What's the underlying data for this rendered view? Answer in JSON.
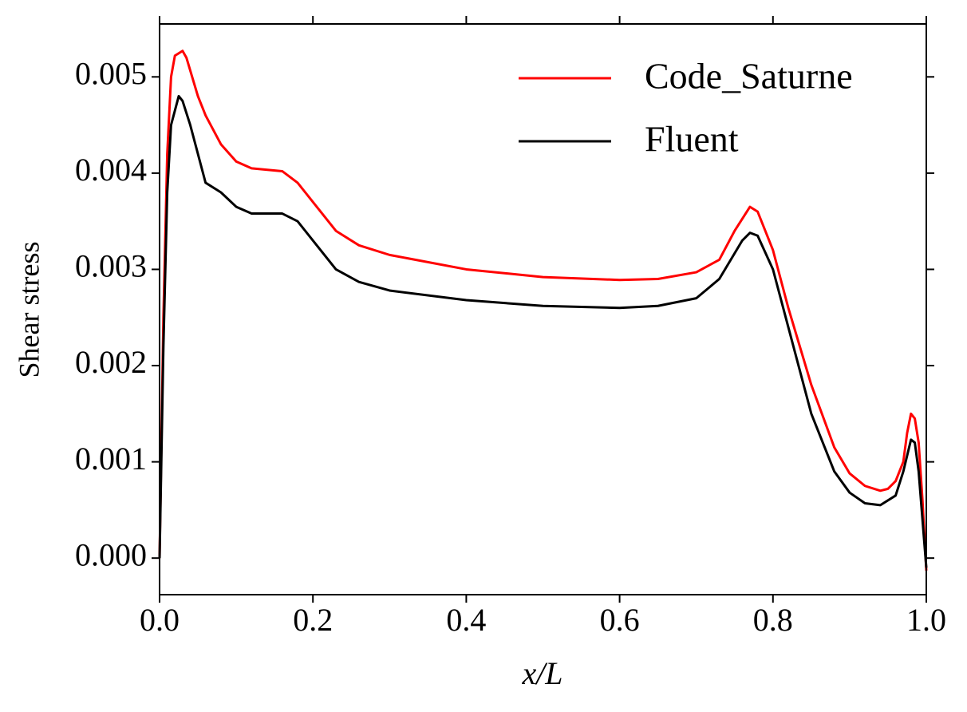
{
  "chart_data": {
    "type": "line",
    "xlabel": "x/L",
    "ylabel": "Shear stress",
    "xlim": [
      0,
      1
    ],
    "ylim": [
      -0.00038,
      0.00555
    ],
    "xticks": [
      {
        "value": 0,
        "label": "0.0"
      },
      {
        "value": 0.2,
        "label": "0.2"
      },
      {
        "value": 0.4,
        "label": "0.4"
      },
      {
        "value": 0.6,
        "label": "0.6"
      },
      {
        "value": 0.8,
        "label": "0.8"
      },
      {
        "value": 1,
        "label": "1.0"
      }
    ],
    "yticks": [
      {
        "value": 0,
        "label": "0.000"
      },
      {
        "value": 0.001,
        "label": "0.001"
      },
      {
        "value": 0.002,
        "label": "0.002"
      },
      {
        "value": 0.003,
        "label": "0.003"
      },
      {
        "value": 0.004,
        "label": "0.004"
      },
      {
        "value": 0.005,
        "label": "0.005"
      }
    ],
    "legend": "upper right",
    "grid": false,
    "series": [
      {
        "name": "Code_Saturne",
        "color": "#ff0000",
        "x": [
          0,
          0.005,
          0.01,
          0.015,
          0.02,
          0.03,
          0.035,
          0.05,
          0.06,
          0.08,
          0.1,
          0.12,
          0.16,
          0.18,
          0.2,
          0.23,
          0.26,
          0.3,
          0.4,
          0.5,
          0.6,
          0.65,
          0.7,
          0.73,
          0.75,
          0.77,
          0.78,
          0.8,
          0.82,
          0.85,
          0.88,
          0.9,
          0.92,
          0.94,
          0.95,
          0.96,
          0.97,
          0.975,
          0.98,
          0.985,
          0.99,
          0.995,
          1.0
        ],
        "values": [
          0,
          0.0025,
          0.0042,
          0.005,
          0.00522,
          0.00527,
          0.0052,
          0.0048,
          0.0046,
          0.0043,
          0.00412,
          0.00405,
          0.00402,
          0.0039,
          0.0037,
          0.0034,
          0.00325,
          0.00315,
          0.003,
          0.00292,
          0.00289,
          0.0029,
          0.00297,
          0.0031,
          0.0034,
          0.00365,
          0.0036,
          0.0032,
          0.0026,
          0.0018,
          0.00115,
          0.00088,
          0.00075,
          0.0007,
          0.00072,
          0.0008,
          0.001,
          0.0013,
          0.0015,
          0.00145,
          0.0012,
          0.0006,
          -0.00013
        ]
      },
      {
        "name": "Fluent",
        "color": "#000000",
        "x": [
          0,
          0.005,
          0.01,
          0.015,
          0.025,
          0.03,
          0.04,
          0.05,
          0.06,
          0.08,
          0.1,
          0.12,
          0.16,
          0.18,
          0.2,
          0.23,
          0.26,
          0.3,
          0.4,
          0.5,
          0.6,
          0.65,
          0.7,
          0.73,
          0.76,
          0.77,
          0.78,
          0.8,
          0.82,
          0.85,
          0.88,
          0.9,
          0.92,
          0.94,
          0.96,
          0.97,
          0.98,
          0.985,
          0.99,
          0.995,
          1.0
        ],
        "values": [
          0,
          0.0022,
          0.0038,
          0.0045,
          0.0048,
          0.00475,
          0.0045,
          0.0042,
          0.0039,
          0.0038,
          0.00365,
          0.00358,
          0.00358,
          0.0035,
          0.0033,
          0.003,
          0.00287,
          0.00278,
          0.00268,
          0.00262,
          0.0026,
          0.00262,
          0.0027,
          0.0029,
          0.0033,
          0.00338,
          0.00335,
          0.003,
          0.0024,
          0.0015,
          0.0009,
          0.00068,
          0.00057,
          0.00055,
          0.00065,
          0.0009,
          0.00123,
          0.0012,
          0.0009,
          0.0004,
          -0.0001
        ]
      }
    ]
  }
}
